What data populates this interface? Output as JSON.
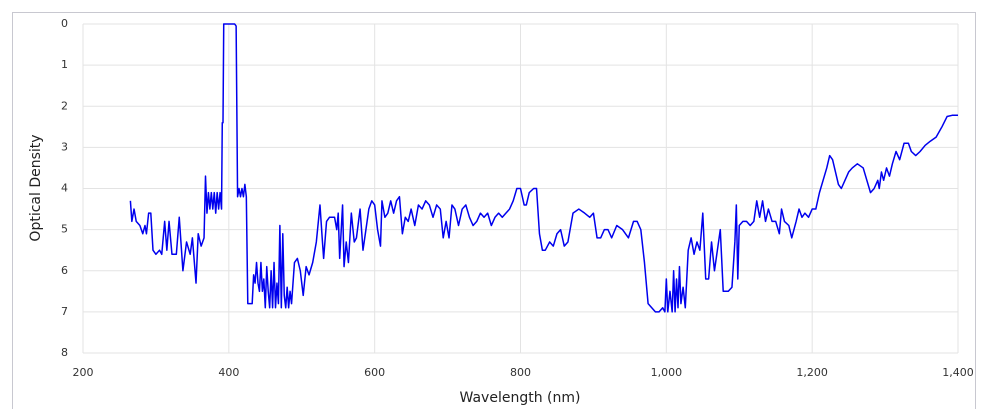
{
  "chart_data": {
    "type": "line",
    "x_label": "Wavelength (nm)",
    "y_label": "Optical Density",
    "xlim": [
      200,
      1400
    ],
    "xticks": [
      200,
      400,
      600,
      800,
      {
        "value": 1000,
        "label": "1,000"
      },
      {
        "value": 1200,
        "label": "1,200"
      },
      {
        "value": 1400,
        "label": "1,400"
      }
    ],
    "ylim": [
      0,
      8
    ],
    "yticks": [
      0,
      1,
      2,
      3,
      4,
      5,
      6,
      7,
      8
    ],
    "y_inverted": true,
    "grid": true,
    "series": [
      {
        "color": "#0000ee",
        "x": [
          265,
          267,
          270,
          273,
          278,
          282,
          285,
          287,
          290,
          293,
          296,
          300,
          305,
          308,
          312,
          315,
          318,
          322,
          328,
          332,
          337,
          342,
          347,
          350,
          355,
          358,
          362,
          366,
          368,
          370,
          372,
          374,
          376,
          378,
          380,
          382,
          384,
          386,
          388,
          390,
          391,
          392,
          393,
          400,
          408,
          410,
          412,
          414,
          416,
          418,
          420,
          422,
          424,
          426,
          432,
          434,
          436,
          438,
          440,
          442,
          444,
          446,
          448,
          450,
          452,
          454,
          456,
          458,
          460,
          462,
          464,
          466,
          468,
          470,
          472,
          474,
          476,
          478,
          480,
          482,
          484,
          486,
          490,
          494,
          498,
          502,
          506,
          510,
          515,
          520,
          525,
          528,
          530,
          534,
          538,
          545,
          548,
          550,
          552,
          556,
          558,
          561,
          564,
          568,
          572,
          575,
          580,
          584,
          588,
          592,
          596,
          600,
          604,
          608,
          610,
          614,
          618,
          622,
          626,
          630,
          634,
          638,
          642,
          646,
          650,
          655,
          660,
          665,
          670,
          675,
          680,
          685,
          690,
          694,
          698,
          702,
          706,
          710,
          715,
          720,
          725,
          730,
          735,
          740,
          745,
          750,
          755,
          760,
          765,
          770,
          775,
          780,
          785,
          790,
          795,
          800,
          805,
          808,
          812,
          818,
          822,
          826,
          830,
          834,
          840,
          845,
          850,
          855,
          860,
          865,
          872,
          880,
          888,
          895,
          900,
          905,
          910,
          915,
          920,
          925,
          932,
          940,
          948,
          955,
          960,
          965,
          970,
          975,
          980,
          985,
          990,
          995,
          998,
          1000,
          1002,
          1005,
          1008,
          1010,
          1012,
          1014,
          1016,
          1018,
          1020,
          1023,
          1026,
          1030,
          1034,
          1038,
          1042,
          1046,
          1050,
          1054,
          1058,
          1062,
          1066,
          1070,
          1074,
          1078,
          1085,
          1090,
          1094,
          1096,
          1098,
          1100,
          1105,
          1110,
          1115,
          1120,
          1124,
          1128,
          1132,
          1136,
          1140,
          1145,
          1150,
          1155,
          1158,
          1162,
          1168,
          1172,
          1178,
          1182,
          1186,
          1190,
          1195,
          1200,
          1205,
          1210,
          1215,
          1220,
          1224,
          1228,
          1232,
          1236,
          1240,
          1245,
          1250,
          1255,
          1262,
          1270,
          1275,
          1280,
          1285,
          1290,
          1292,
          1295,
          1298,
          1302,
          1306,
          1310,
          1315,
          1320,
          1326,
          1332,
          1336,
          1342,
          1348,
          1355,
          1362,
          1370,
          1378,
          1385,
          1392,
          1400
        ],
        "values": [
          4.3,
          4.8,
          4.5,
          4.8,
          4.9,
          5.1,
          4.9,
          5.1,
          4.6,
          4.6,
          5.5,
          5.6,
          5.5,
          5.6,
          4.8,
          5.5,
          4.8,
          5.6,
          5.6,
          4.7,
          6.0,
          5.3,
          5.6,
          5.2,
          6.3,
          5.1,
          5.4,
          5.2,
          3.7,
          4.6,
          4.1,
          4.5,
          4.1,
          4.5,
          4.1,
          4.6,
          4.1,
          4.5,
          4.1,
          4.5,
          2.4,
          2.4,
          0.0,
          0.0,
          0.0,
          0.05,
          4.2,
          4.0,
          4.2,
          4.0,
          4.2,
          3.9,
          4.2,
          6.8,
          6.8,
          6.1,
          6.3,
          5.8,
          6.3,
          6.5,
          5.8,
          6.5,
          6.2,
          6.9,
          5.9,
          6.5,
          6.9,
          6.0,
          6.9,
          5.8,
          6.9,
          6.3,
          6.8,
          4.9,
          6.9,
          5.1,
          6.6,
          6.9,
          6.4,
          6.9,
          6.5,
          6.8,
          5.8,
          5.7,
          6.0,
          6.6,
          5.9,
          6.1,
          5.8,
          5.3,
          4.4,
          5.2,
          5.7,
          4.8,
          4.7,
          4.7,
          5.0,
          4.6,
          5.7,
          4.4,
          5.9,
          5.3,
          5.8,
          4.6,
          5.3,
          5.2,
          4.5,
          5.5,
          5.0,
          4.5,
          4.3,
          4.4,
          5.0,
          5.4,
          4.3,
          4.7,
          4.6,
          4.3,
          4.6,
          4.3,
          4.2,
          5.1,
          4.7,
          4.8,
          4.5,
          4.9,
          4.4,
          4.5,
          4.3,
          4.4,
          4.7,
          4.4,
          4.5,
          5.2,
          4.8,
          5.2,
          4.4,
          4.5,
          4.9,
          4.5,
          4.4,
          4.7,
          4.9,
          4.8,
          4.6,
          4.7,
          4.6,
          4.9,
          4.7,
          4.6,
          4.7,
          4.6,
          4.5,
          4.3,
          4.0,
          4.0,
          4.4,
          4.4,
          4.1,
          4.0,
          4.0,
          5.1,
          5.5,
          5.5,
          5.3,
          5.4,
          5.1,
          5.0,
          5.4,
          5.3,
          4.6,
          4.5,
          4.6,
          4.7,
          4.6,
          5.2,
          5.2,
          5.0,
          5.0,
          5.2,
          4.9,
          5.0,
          5.2,
          4.8,
          4.8,
          5.0,
          5.8,
          6.8,
          6.9,
          7.0,
          7.0,
          6.9,
          7.0,
          6.2,
          7.0,
          6.5,
          7.0,
          6.0,
          7.0,
          6.2,
          6.9,
          5.9,
          6.8,
          6.4,
          6.9,
          5.5,
          5.2,
          5.6,
          5.3,
          5.5,
          4.6,
          6.2,
          6.2,
          5.3,
          6.0,
          5.5,
          5.0,
          6.5,
          6.5,
          6.4,
          5.3,
          4.4,
          6.2,
          4.9,
          4.8,
          4.8,
          4.9,
          4.8,
          4.3,
          4.7,
          4.3,
          4.8,
          4.5,
          4.8,
          4.8,
          5.1,
          4.5,
          4.8,
          4.9,
          5.2,
          4.8,
          4.5,
          4.7,
          4.6,
          4.7,
          4.5,
          4.5,
          4.1,
          3.8,
          3.5,
          3.2,
          3.3,
          3.6,
          3.9,
          4.0,
          3.8,
          3.6,
          3.5,
          3.4,
          3.5,
          3.8,
          4.1,
          4.0,
          3.8,
          4.0,
          3.6,
          3.8,
          3.5,
          3.7,
          3.4,
          3.1,
          3.3,
          2.9,
          2.9,
          3.1,
          3.2,
          3.1,
          2.95,
          2.85,
          2.75,
          2.5,
          2.25,
          2.22,
          2.22
        ]
      }
    ]
  }
}
